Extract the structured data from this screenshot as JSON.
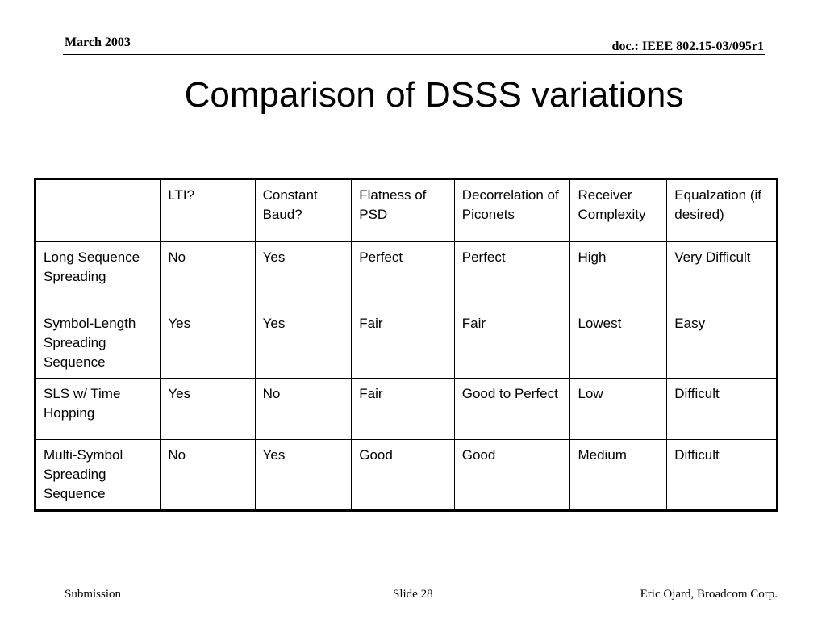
{
  "header": {
    "date": "March 2003",
    "doc_id": "doc.: IEEE 802.15-03/095r1"
  },
  "slide": {
    "title": "Comparison of DSSS variations"
  },
  "table": {
    "headers": [
      "",
      "LTI?",
      "Constant Baud?",
      "Flatness of PSD",
      "Decorrelation of Piconets",
      "Receiver Complexity",
      "Equalzation (if desired)"
    ],
    "rows": [
      [
        "Long Sequence Spreading",
        "No",
        "Yes",
        "Perfect",
        "Perfect",
        "High",
        "Very Difficult"
      ],
      [
        "Symbol-Length Spreading Sequence",
        "Yes",
        "Yes",
        "Fair",
        "Fair",
        "Lowest",
        "Easy"
      ],
      [
        "SLS w/ Time Hopping",
        "Yes",
        "No",
        "Fair",
        "Good to Perfect",
        "Low",
        "Difficult"
      ],
      [
        "Multi-Symbol Spreading Sequence",
        "No",
        "Yes",
        "Good",
        "Good",
        "Medium",
        "Difficult"
      ]
    ]
  },
  "footer": {
    "left": "Submission",
    "center": "Slide 28",
    "right": "Eric Ojard, Broadcom Corp."
  }
}
